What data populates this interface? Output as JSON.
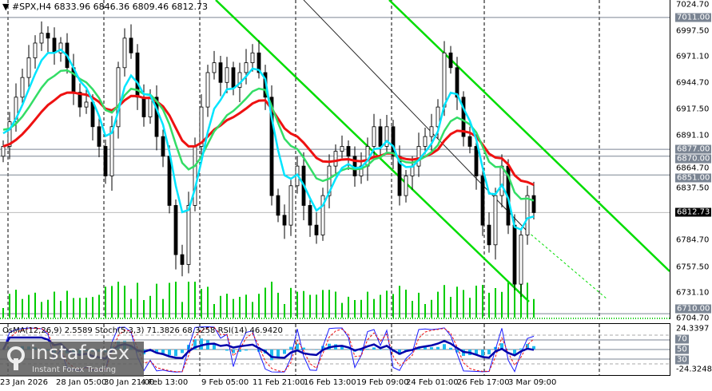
{
  "chart": {
    "symbol": "#SPX,H4",
    "ohlc_text": "6833.96 6846.36 6809.46 6812.73",
    "colors": {
      "bull": "#ffffff",
      "bear": "#000000",
      "volume": "#00cc00",
      "channel": "#00dd00",
      "ma_fast": "#00e5ff",
      "ma_mid": "#33dd66",
      "ma_slow": "#ee1111",
      "tag": "#7b8593"
    },
    "price_axis": [
      "7024.70",
      "6997.50",
      "6971.10",
      "6944.70",
      "6917.50",
      "6891.10",
      "6864.70",
      "6837.50",
      "6784.70",
      "6757.50",
      "6731.10",
      "6704.70"
    ],
    "price_tags": [
      {
        "price": 7011.0,
        "label": "7011.00"
      },
      {
        "price": 6877.0,
        "label": "6877.00"
      },
      {
        "price": 6870.0,
        "label": "6870.00"
      },
      {
        "price": 6851.0,
        "label": "6851.00"
      },
      {
        "price": 6710.0,
        "label": "6710.00"
      }
    ],
    "current_price": {
      "price": 6812.73,
      "label": "6812.73"
    },
    "closes": [
      6880,
      6905,
      6930,
      6950,
      6970,
      6985,
      6995,
      6990,
      6975,
      6985,
      6960,
      6935,
      6920,
      6925,
      6900,
      6880,
      6850,
      6900,
      6960,
      6990,
      6975,
      6930,
      6910,
      6930,
      6890,
      6870,
      6820,
      6770,
      6760,
      6820,
      6880,
      6920,
      6955,
      6965,
      6945,
      6960,
      6940,
      6955,
      6965,
      6975,
      6955,
      6930,
      6830,
      6810,
      6800,
      6840,
      6860,
      6820,
      6800,
      6790,
      6830,
      6860,
      6875,
      6880,
      6870,
      6850,
      6860,
      6880,
      6900,
      6880,
      6900,
      6870,
      6830,
      6850,
      6860,
      6880,
      6890,
      6900,
      6920,
      6975,
      6960,
      6930,
      6890,
      6880,
      6850,
      6800,
      6780,
      6830,
      6860,
      6800,
      6740,
      6790,
      6830,
      6812.73
    ]
  },
  "indicator": {
    "title": "OsMA(12,26,9) 2.5589  Stoch(5,3,3) 71.3826 68.3258  RSI(14) 46.9420",
    "axis": {
      "max": "24.3397",
      "l70": "70",
      "l50": "50",
      "l30": "30",
      "min": "-24.3248"
    }
  },
  "time_axis": [
    "23 Jan 2026",
    "28 Jan 05:00",
    "30 Jan 21:00",
    "4 Feb 13:00",
    "9 Feb 05:00",
    "11 Feb 21:00",
    "16 Feb 13:00",
    "19 Feb 09:00",
    "24 Feb 01:00",
    "26 Feb 17:00",
    "3 Mar 09:00"
  ],
  "watermark": {
    "brand": "instaforex",
    "tagline": "Instant Forex Trading"
  }
}
